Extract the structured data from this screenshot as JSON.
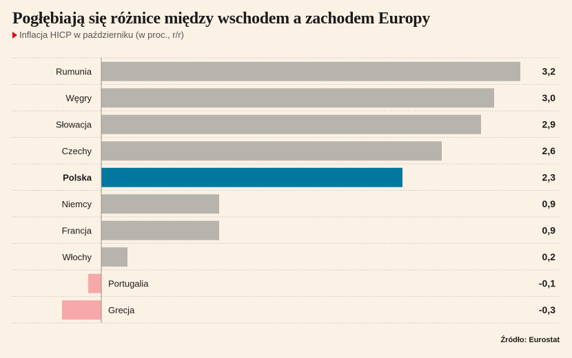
{
  "header": {
    "title": "Pogłębiają się różnice między wschodem a zachodem Europy",
    "subtitle": "Inflacja HICP w październiku (w proc., r/r)"
  },
  "source": "Źródło: Eurostat",
  "colors": {
    "default": "#b6b4ad",
    "highlight": "#00789f",
    "negative": "#f7a8a8",
    "gridline": "#c9c4bb",
    "background": "#fbf1e5"
  },
  "chart_data": {
    "type": "bar",
    "orientation": "horizontal",
    "title": "Pogłębiają się różnice między wschodem a zachodem Europy",
    "subtitle": "Inflacja HICP w październiku (w proc., r/r)",
    "categories": [
      "Rumunia",
      "Węgry",
      "Słowacja",
      "Czechy",
      "Polska",
      "Niemcy",
      "Francja",
      "Włochy",
      "Portugalia",
      "Grecja"
    ],
    "values": [
      3.2,
      3.0,
      2.9,
      2.6,
      2.3,
      0.9,
      0.9,
      0.2,
      -0.1,
      -0.3
    ],
    "value_labels": [
      "3,2",
      "3,0",
      "2,9",
      "2,6",
      "2,3",
      "0,9",
      "0,9",
      "0,2",
      "-0,1",
      "-0,3"
    ],
    "highlight": "Polska",
    "xlim": [
      -0.3,
      3.2
    ],
    "grid": true,
    "legend": "none"
  }
}
